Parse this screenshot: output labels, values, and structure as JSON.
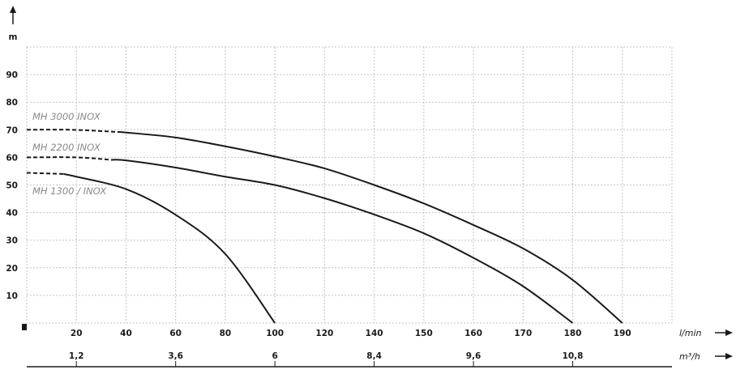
{
  "chart_data": {
    "type": "line",
    "y_unit": "m",
    "x_unit": "l/min",
    "x2_unit": "m³/h",
    "ylim": [
      0,
      100
    ],
    "yticks": [
      10,
      20,
      30,
      40,
      50,
      60,
      70,
      80,
      90
    ],
    "xticks": [
      0,
      20,
      40,
      60,
      80,
      100,
      120,
      140,
      150,
      160,
      170,
      180,
      190,
      200
    ],
    "xtick_labels": [
      "",
      "20",
      "40",
      "60",
      "80",
      "100",
      "120",
      "140",
      "150",
      "160",
      "170",
      "180",
      "190",
      ""
    ],
    "x2ticks": [
      {
        "at_lmin": 20,
        "label": "1,2"
      },
      {
        "at_lmin": 60,
        "label": "3,6"
      },
      {
        "at_lmin": 100,
        "label": "6"
      },
      {
        "at_lmin": 140,
        "label": "8,4"
      },
      {
        "at_lmin": 160,
        "label": "9,6"
      },
      {
        "at_lmin": 180,
        "label": "10,8"
      }
    ],
    "grid": true,
    "series": [
      {
        "name": "MH 3000 INOX",
        "dashed": [
          [
            0,
            70
          ],
          [
            18,
            70
          ],
          [
            36.6,
            69.2
          ]
        ],
        "points": [
          [
            36.6,
            69.2
          ],
          [
            40,
            69
          ],
          [
            60,
            67.2
          ],
          [
            80,
            64
          ],
          [
            100,
            60.3
          ],
          [
            120,
            56
          ],
          [
            140,
            50
          ],
          [
            150,
            43.3
          ],
          [
            160,
            35.5
          ],
          [
            170,
            27
          ],
          [
            180,
            15.6
          ],
          [
            190,
            0
          ]
        ]
      },
      {
        "name": "MH 2200 INOX",
        "dashed": [
          [
            0,
            60
          ],
          [
            20,
            60
          ],
          [
            34,
            59.1
          ]
        ],
        "points": [
          [
            34,
            59.1
          ],
          [
            40,
            58.9
          ],
          [
            60,
            56.3
          ],
          [
            80,
            53
          ],
          [
            100,
            50
          ],
          [
            120,
            45.2
          ],
          [
            140,
            39.3
          ],
          [
            150,
            32.5
          ],
          [
            160,
            23.6
          ],
          [
            170,
            13.3
          ],
          [
            180,
            0
          ]
        ]
      },
      {
        "name": "MH 1300 / INOX",
        "dashed": [
          [
            0,
            54.4
          ],
          [
            14.8,
            54
          ]
        ],
        "points": [
          [
            14.8,
            54
          ],
          [
            20,
            53
          ],
          [
            40,
            48.5
          ],
          [
            60,
            39.2
          ],
          [
            80,
            25
          ],
          [
            100,
            0
          ]
        ]
      }
    ],
    "line_color": "#1a1a1a",
    "label_color": "#8a8a8a",
    "grid_color": "#c4c4c4"
  }
}
